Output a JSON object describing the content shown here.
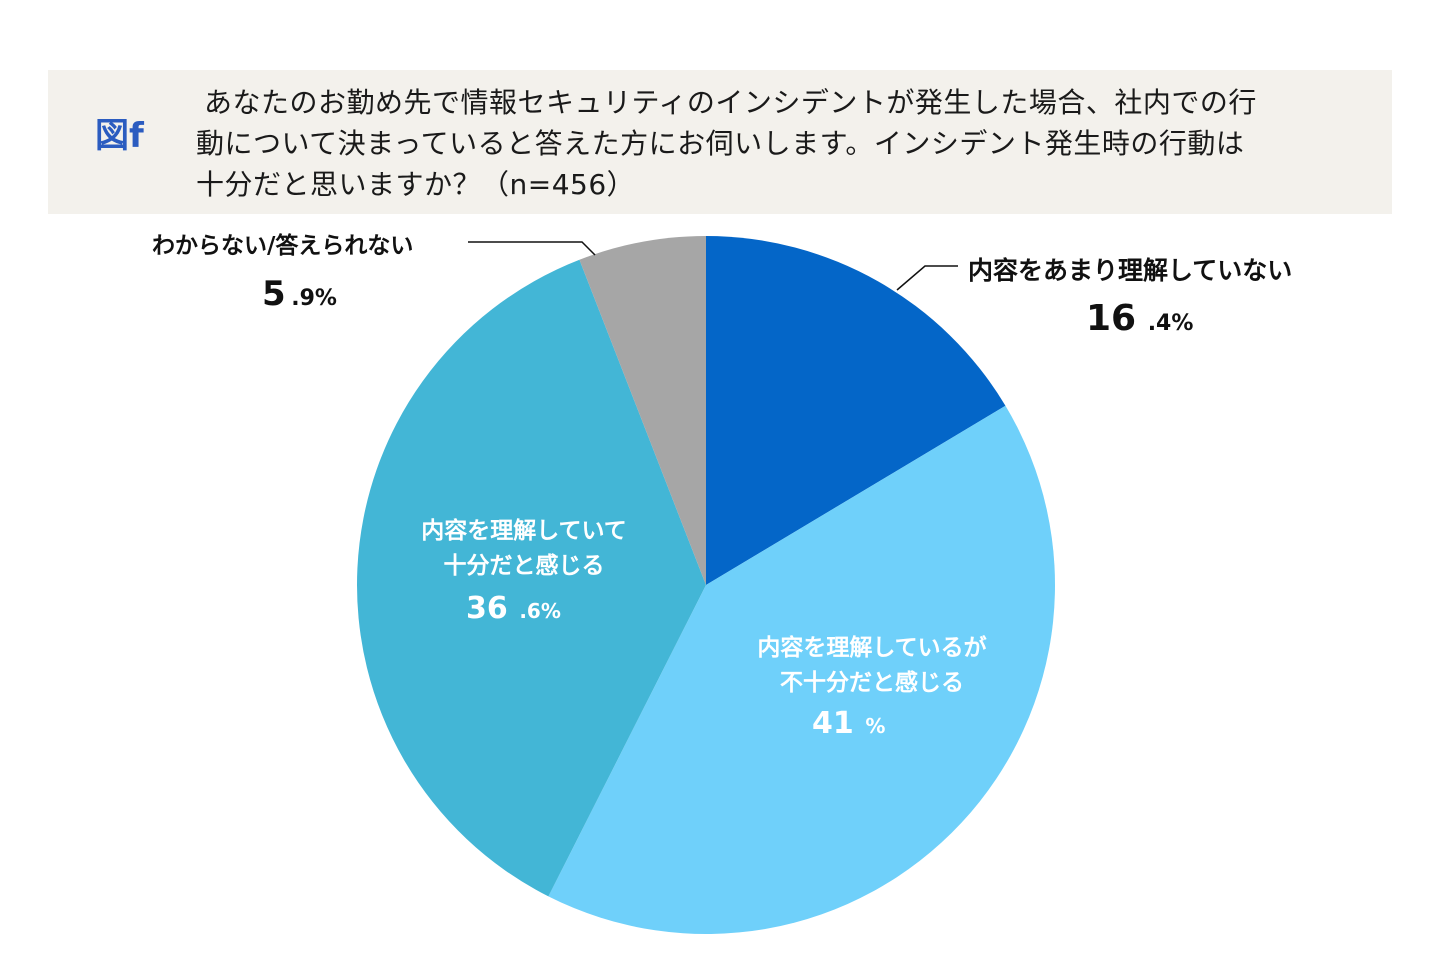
{
  "figure": {
    "label": "図f",
    "question_lines": [
      "あなたのお勤め先で情報セキュリティのインシデントが発生した場合、社内での行",
      "動について決まっていると答えた方にお伺いします。インシデント発生時の行動は",
      "十分だと思いますか？（n=456）"
    ]
  },
  "chart_data": {
    "type": "pie",
    "title": "",
    "n": 456,
    "start_angle_deg": 0,
    "direction": "clockwise",
    "slices": [
      {
        "label": "内容をあまり理解していない",
        "value": 16.4,
        "value_int": "16",
        "value_dec": ".4%",
        "color": "#0466c8",
        "label_style": "external"
      },
      {
        "label": "内容を理解しているが不十分だと感じる",
        "label_lines": [
          "内容を理解しているが",
          "不十分だと感じる"
        ],
        "value": 41,
        "value_int": "41",
        "value_dec": "%",
        "color": "#6fd0fa",
        "label_style": "internal"
      },
      {
        "label": "内容を理解していて十分だと感じる",
        "label_lines": [
          "内容を理解していて",
          "十分だと感じる"
        ],
        "value": 36.6,
        "value_int": "36",
        "value_dec": ".6%",
        "color": "#43b6d6",
        "label_style": "internal"
      },
      {
        "label": "わからない/答えられない",
        "value": 5.9,
        "value_int": "5",
        "value_dec": ".9%",
        "color": "#a6a6a6",
        "label_style": "external"
      }
    ]
  }
}
